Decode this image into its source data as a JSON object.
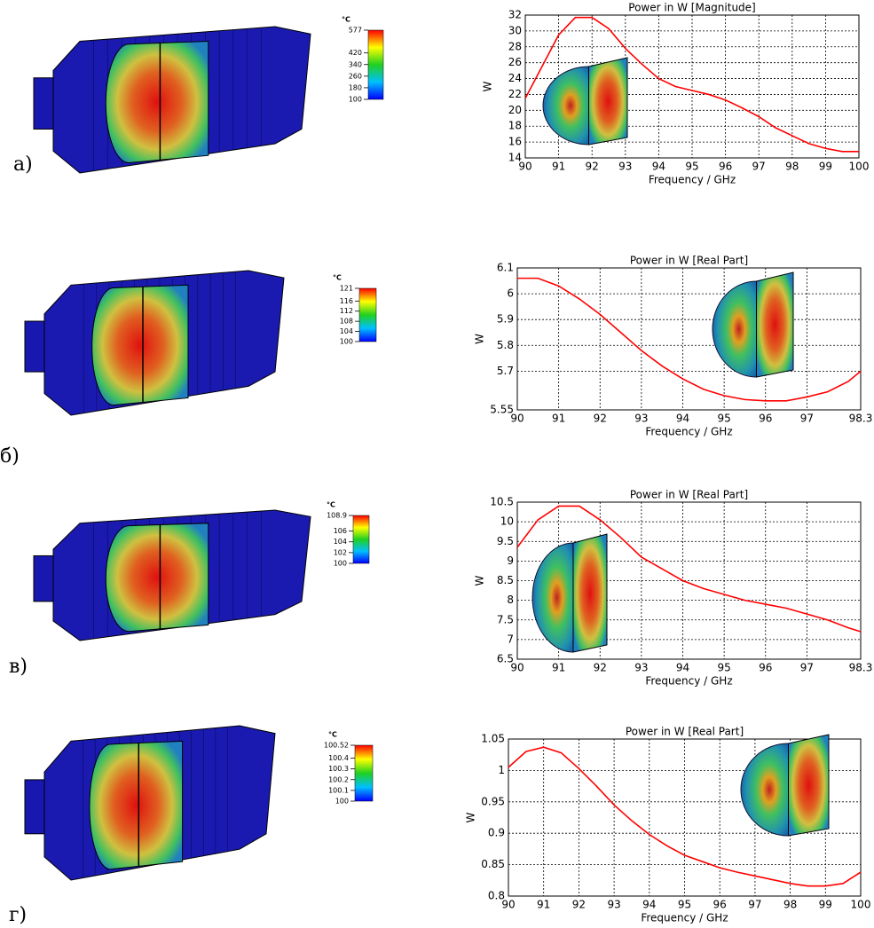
{
  "chart_data": [
    {
      "type": "line",
      "title": "Power in W [Magnitude]",
      "x_label": "Frequency / GHz",
      "y_label": "W",
      "color": "#ff0000",
      "grid": true,
      "x": [
        90,
        90.5,
        91,
        91.5,
        92,
        92.5,
        93,
        93.5,
        94,
        94.5,
        95,
        95.5,
        96,
        96.5,
        97,
        97.5,
        98,
        98.5,
        99,
        99.5,
        100
      ],
      "values": [
        21.5,
        25.5,
        29.5,
        31.7,
        31.7,
        30.3,
        27.8,
        25.8,
        24.0,
        23.0,
        22.5,
        22.0,
        21.3,
        20.3,
        19.2,
        17.8,
        16.8,
        15.8,
        15.2,
        14.8,
        14.8
      ],
      "xlim": [
        90,
        100
      ],
      "xticks": [
        90,
        91,
        92,
        93,
        94,
        95,
        96,
        97,
        98,
        99,
        100
      ],
      "ylim": [
        14,
        32
      ],
      "yticks": [
        14,
        16,
        18,
        20,
        22,
        24,
        26,
        28,
        30,
        32
      ]
    },
    {
      "type": "line",
      "title": "Power in W [Real Part]",
      "x_label": "Frequency / GHz",
      "y_label": "W",
      "color": "#ff0000",
      "grid": true,
      "x": [
        90,
        90.5,
        91,
        91.5,
        92,
        92.5,
        93,
        93.5,
        94,
        94.5,
        95,
        95.5,
        96,
        96.5,
        97,
        97.5,
        98,
        98.3
      ],
      "values": [
        6.06,
        6.06,
        6.03,
        5.98,
        5.92,
        5.85,
        5.78,
        5.72,
        5.67,
        5.63,
        5.605,
        5.59,
        5.585,
        5.585,
        5.6,
        5.62,
        5.66,
        5.7
      ],
      "xlim": [
        90,
        98.3
      ],
      "xticks": [
        90,
        91,
        92,
        93,
        94,
        95,
        96,
        97,
        98.3
      ],
      "ylim": [
        5.55,
        6.1
      ],
      "yticks": [
        5.55,
        5.7,
        5.8,
        5.9,
        6,
        6.1
      ]
    },
    {
      "type": "line",
      "title": "Power in W [Real Part]",
      "x_label": "Frequency / GHz",
      "y_label": "W",
      "color": "#ff0000",
      "grid": true,
      "x": [
        90,
        90.5,
        91,
        91.5,
        92,
        92.5,
        93,
        93.5,
        94,
        94.5,
        95,
        95.5,
        96,
        96.5,
        97,
        97.5,
        98,
        98.3
      ],
      "values": [
        9.35,
        10.05,
        10.4,
        10.4,
        10.05,
        9.6,
        9.1,
        8.8,
        8.5,
        8.3,
        8.15,
        8.0,
        7.9,
        7.8,
        7.65,
        7.5,
        7.3,
        7.2
      ],
      "xlim": [
        90,
        98.3
      ],
      "xticks": [
        90,
        91,
        92,
        93,
        94,
        95,
        96,
        97,
        98.3
      ],
      "ylim": [
        6.5,
        10.5
      ],
      "yticks": [
        6.5,
        7,
        7.5,
        8,
        8.5,
        9,
        9.5,
        10,
        10.5
      ]
    },
    {
      "type": "line",
      "title": "Power in W [Real Part]",
      "x_label": "Frequency / GHz",
      "y_label": "W",
      "color": "#ff0000",
      "grid": true,
      "x": [
        90,
        90.5,
        91,
        91.5,
        92,
        92.5,
        93,
        93.5,
        94,
        94.5,
        95,
        95.5,
        96,
        96.5,
        97,
        97.5,
        98,
        98.5,
        99,
        99.5,
        100
      ],
      "values": [
        1.005,
        1.03,
        1.037,
        1.028,
        1.003,
        0.975,
        0.945,
        0.92,
        0.898,
        0.88,
        0.865,
        0.855,
        0.845,
        0.838,
        0.832,
        0.826,
        0.82,
        0.816,
        0.816,
        0.82,
        0.838
      ],
      "xlim": [
        90,
        100
      ],
      "xticks": [
        90,
        91,
        92,
        93,
        94,
        95,
        96,
        97,
        98,
        99,
        100
      ],
      "ylim": [
        0.8,
        1.05
      ],
      "yticks": [
        0.8,
        0.85,
        0.9,
        0.95,
        1,
        1.05
      ]
    }
  ],
  "panels": [
    {
      "label": "а)",
      "colorbar": {
        "unit": "°C",
        "lim": [
          100,
          577
        ],
        "ticks": [
          100,
          180,
          260,
          340,
          420,
          577
        ]
      }
    },
    {
      "label": "б)",
      "colorbar": {
        "unit": "°C",
        "lim": [
          100,
          121
        ],
        "ticks": [
          100,
          104,
          108,
          112,
          116,
          121
        ]
      }
    },
    {
      "label": "в)",
      "colorbar": {
        "unit": "°C",
        "lim": [
          100,
          108.9
        ],
        "ticks": [
          100,
          102,
          104,
          106,
          108.9
        ]
      }
    },
    {
      "label": "г)",
      "colorbar": {
        "unit": "°C",
        "lim": [
          100,
          100.52
        ],
        "ticks": [
          100,
          100.1,
          100.2,
          100.3,
          100.4,
          100.52
        ]
      }
    }
  ]
}
